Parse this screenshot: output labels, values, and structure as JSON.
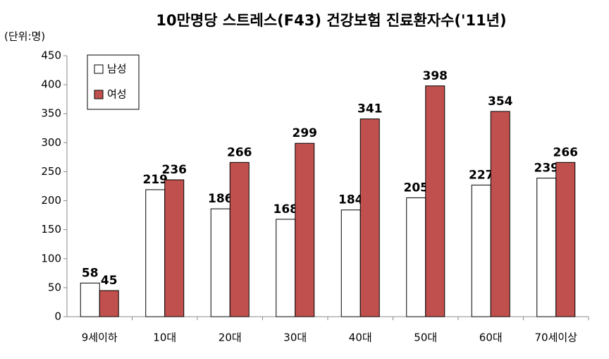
{
  "chart_data": {
    "type": "bar",
    "title": "10만명당 스트레스(F43) 건강보험 진료환자수('11년)",
    "y_label": "(단위:명)",
    "categories": [
      "9세이하",
      "10대",
      "20대",
      "30대",
      "40대",
      "50대",
      "60대",
      "70세이상"
    ],
    "series": [
      {
        "name": "남성",
        "color": "#ffffff",
        "values": [
          58,
          219,
          186,
          168,
          184,
          205,
          227,
          239
        ]
      },
      {
        "name": "여성",
        "color": "#c0504d",
        "values": [
          45,
          236,
          266,
          299,
          341,
          398,
          354,
          266
        ]
      }
    ],
    "ylim": [
      0,
      450
    ],
    "yticks": [
      0,
      50,
      100,
      150,
      200,
      250,
      300,
      350,
      400,
      450
    ],
    "grid": false,
    "legend": "upper left"
  }
}
